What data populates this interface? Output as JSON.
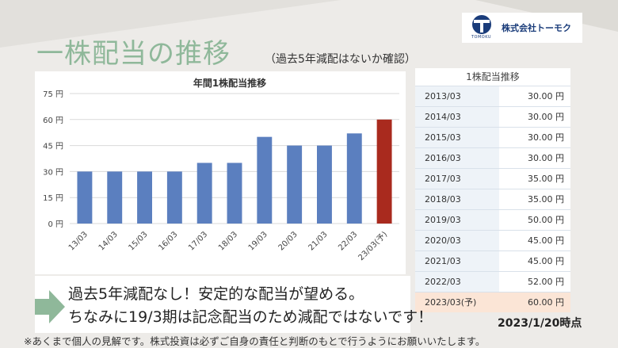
{
  "header": {
    "title": "一株配当の推移",
    "subtitle": "（過去5年減配はないか確認）",
    "logo_name": "株式会社トーモク",
    "logo_sub": "TOMOKU"
  },
  "chart_data": {
    "type": "bar",
    "title": "年間1株配当推移",
    "categories": [
      "13/03",
      "14/03",
      "15/03",
      "16/03",
      "17/03",
      "18/03",
      "19/03",
      "20/03",
      "21/03",
      "22/03",
      "23/03(予)"
    ],
    "values": [
      30,
      30,
      30,
      30,
      35,
      35,
      50,
      45,
      45,
      52,
      60
    ],
    "yticks": [
      "0 円",
      "15 円",
      "30 円",
      "45 円",
      "60 円",
      "75 円"
    ],
    "ylim": [
      0,
      75
    ],
    "grid": true,
    "colors": {
      "bar": "#5b7fbf",
      "forecast": "#a92a1e"
    }
  },
  "table": {
    "title": "1株配当推移",
    "rows": [
      {
        "year": "2013/03",
        "value": "30.00 円"
      },
      {
        "year": "2014/03",
        "value": "30.00 円"
      },
      {
        "year": "2015/03",
        "value": "30.00 円"
      },
      {
        "year": "2016/03",
        "value": "30.00 円"
      },
      {
        "year": "2017/03",
        "value": "35.00 円"
      },
      {
        "year": "2018/03",
        "value": "35.00 円"
      },
      {
        "year": "2019/03",
        "value": "50.00 円"
      },
      {
        "year": "2020/03",
        "value": "45.00 円"
      },
      {
        "year": "2021/03",
        "value": "45.00 円"
      },
      {
        "year": "2022/03",
        "value": "52.00 円"
      },
      {
        "year": "2023/03(予)",
        "value": "60.00 円"
      }
    ]
  },
  "callout": {
    "line1": "過去5年減配なし！安定的な配当が望める。",
    "line2": "ちなみに19/3期は記念配当のため減配ではないです！"
  },
  "as_of": "2023/1/20時点",
  "disclaimer": "※あくまで個人の見解です。株式投資は必ずご自身の責任と判断のもとで行うようにお願いいたします。"
}
